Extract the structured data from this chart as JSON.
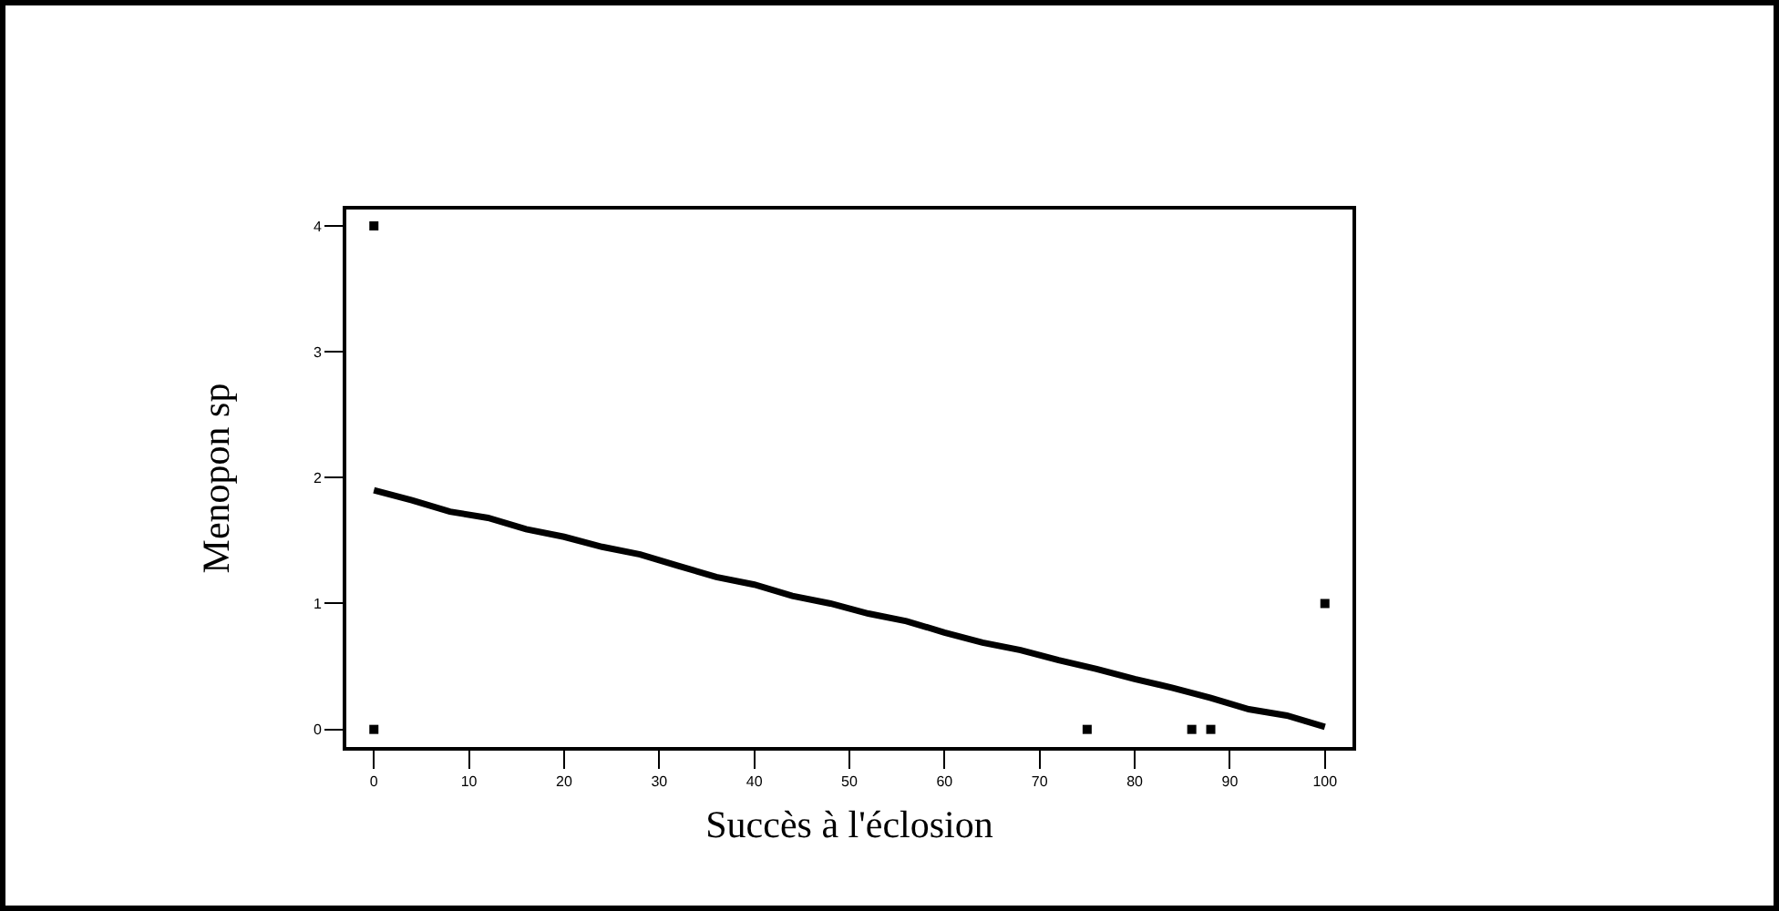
{
  "chart_data": {
    "type": "line",
    "xlabel": "Succès à l'éclosion",
    "ylabel": "Menopon sp",
    "xlim": [
      -2.9,
      102.9
    ],
    "ylim": [
      -0.14,
      4.13
    ],
    "xticks": [
      0,
      10,
      20,
      30,
      40,
      50,
      60,
      70,
      80,
      90,
      100
    ],
    "yticks": [
      0,
      1,
      2,
      3,
      4
    ],
    "grid": false,
    "legend": false,
    "series": [
      {
        "type": "line",
        "color": "#000000",
        "x": [
          0,
          4,
          8,
          12,
          16,
          20,
          24,
          28,
          32,
          36,
          40,
          44,
          48,
          52,
          56,
          60,
          64,
          68,
          72,
          76,
          80,
          84,
          88,
          92,
          96,
          100
        ],
        "values": [
          1.9,
          1.82,
          1.73,
          1.68,
          1.59,
          1.53,
          1.45,
          1.39,
          1.3,
          1.21,
          1.15,
          1.06,
          1.0,
          0.92,
          0.86,
          0.77,
          0.69,
          0.63,
          0.55,
          0.48,
          0.4,
          0.33,
          0.25,
          0.16,
          0.11,
          0.02
        ]
      },
      {
        "type": "scatter",
        "marker": "square",
        "color": "#000000",
        "x": [
          0,
          0,
          75,
          86,
          88,
          100
        ],
        "values": [
          4,
          0,
          0,
          0,
          0,
          1
        ]
      }
    ]
  }
}
